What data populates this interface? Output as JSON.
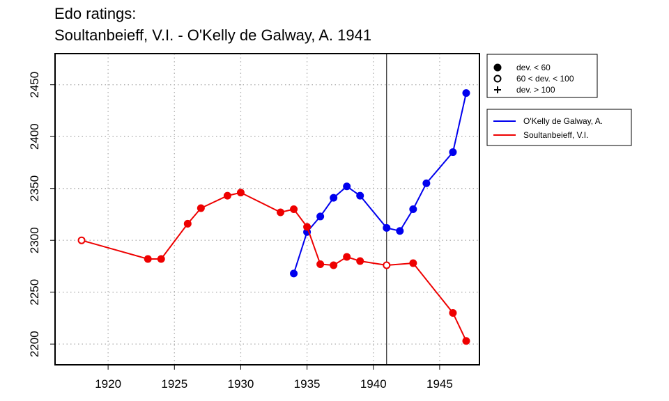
{
  "title": {
    "line1": "Edo ratings:",
    "line2": "Soultanbeieff, V.I. - O'Kelly de Galway, A. 1941"
  },
  "chart_data": {
    "type": "line",
    "x_ticks": [
      1920,
      1925,
      1930,
      1935,
      1940,
      1945
    ],
    "y_ticks": [
      2200,
      2250,
      2300,
      2350,
      2400,
      2450
    ],
    "xlim": [
      1916,
      1948
    ],
    "ylim": [
      2180,
      2480
    ],
    "grid": true,
    "reference_line_x": 1941,
    "legend_deviation": [
      {
        "label": "dev. < 60",
        "marker": "filled"
      },
      {
        "label": "60 < dev. < 100",
        "marker": "open"
      },
      {
        "label": "dev. > 100",
        "marker": "plus"
      }
    ],
    "legend_placement": "outside-right",
    "series": [
      {
        "name": "O'Kelly de Galway, A.",
        "color": "#0000ee",
        "points": [
          {
            "x": 1934,
            "y": 2268,
            "marker": "filled"
          },
          {
            "x": 1935,
            "y": 2308,
            "marker": "filled"
          },
          {
            "x": 1936,
            "y": 2323,
            "marker": "filled"
          },
          {
            "x": 1937,
            "y": 2341,
            "marker": "filled"
          },
          {
            "x": 1938,
            "y": 2352,
            "marker": "filled"
          },
          {
            "x": 1939,
            "y": 2343,
            "marker": "filled"
          },
          {
            "x": 1941,
            "y": 2312,
            "marker": "filled"
          },
          {
            "x": 1942,
            "y": 2309,
            "marker": "filled"
          },
          {
            "x": 1943,
            "y": 2330,
            "marker": "filled"
          },
          {
            "x": 1944,
            "y": 2355,
            "marker": "filled"
          },
          {
            "x": 1946,
            "y": 2385,
            "marker": "filled"
          },
          {
            "x": 1947,
            "y": 2442,
            "marker": "filled"
          }
        ]
      },
      {
        "name": "Soultanbeieff, V.I.",
        "color": "#ee0000",
        "points": [
          {
            "x": 1918,
            "y": 2300,
            "marker": "open"
          },
          {
            "x": 1923,
            "y": 2282,
            "marker": "filled"
          },
          {
            "x": 1924,
            "y": 2282,
            "marker": "filled"
          },
          {
            "x": 1926,
            "y": 2316,
            "marker": "filled"
          },
          {
            "x": 1927,
            "y": 2331,
            "marker": "filled"
          },
          {
            "x": 1929,
            "y": 2343,
            "marker": "filled"
          },
          {
            "x": 1930,
            "y": 2346,
            "marker": "filled"
          },
          {
            "x": 1933,
            "y": 2327,
            "marker": "filled"
          },
          {
            "x": 1934,
            "y": 2330,
            "marker": "filled"
          },
          {
            "x": 1935,
            "y": 2313,
            "marker": "filled"
          },
          {
            "x": 1936,
            "y": 2277,
            "marker": "filled"
          },
          {
            "x": 1937,
            "y": 2276,
            "marker": "filled"
          },
          {
            "x": 1938,
            "y": 2284,
            "marker": "filled"
          },
          {
            "x": 1939,
            "y": 2280,
            "marker": "filled"
          },
          {
            "x": 1941,
            "y": 2276,
            "marker": "open"
          },
          {
            "x": 1943,
            "y": 2278,
            "marker": "filled"
          },
          {
            "x": 1946,
            "y": 2230,
            "marker": "filled"
          },
          {
            "x": 1947,
            "y": 2203,
            "marker": "filled"
          }
        ]
      }
    ]
  }
}
